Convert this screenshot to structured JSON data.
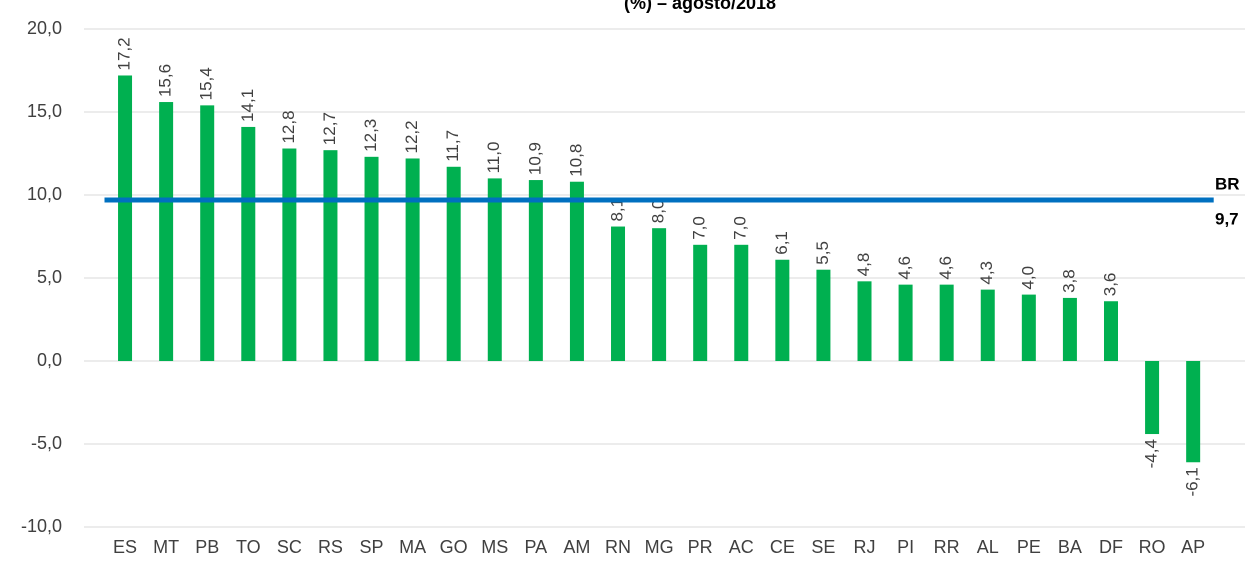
{
  "chart_data": {
    "type": "bar",
    "title": "(%)  – agosto/2018",
    "categories": [
      "ES",
      "MT",
      "PB",
      "TO",
      "SC",
      "RS",
      "SP",
      "MA",
      "GO",
      "MS",
      "PA",
      "AM",
      "RN",
      "MG",
      "PR",
      "AC",
      "CE",
      "SE",
      "RJ",
      "PI",
      "RR",
      "AL",
      "PE",
      "BA",
      "DF",
      "RO",
      "AP"
    ],
    "values": [
      17.2,
      15.6,
      15.4,
      14.1,
      12.8,
      12.7,
      12.3,
      12.2,
      11.7,
      11.0,
      10.9,
      10.8,
      8.1,
      8.0,
      7.0,
      7.0,
      6.1,
      5.5,
      4.8,
      4.6,
      4.6,
      4.3,
      4.0,
      3.8,
      3.6,
      -4.4,
      -6.1
    ],
    "value_labels": [
      "17,2",
      "15,6",
      "15,4",
      "14,1",
      "12,8",
      "12,7",
      "12,3",
      "12,2",
      "11,7",
      "11,0",
      "10,9",
      "10,8",
      "8,1",
      "8,0",
      "7,0",
      "7,0",
      "6,1",
      "5,5",
      "4,8",
      "4,6",
      "4,6",
      "4,3",
      "4,0",
      "3,8",
      "3,6",
      "-4,4",
      "-6,1"
    ],
    "color": "#00b050",
    "ylim": [
      -10,
      20
    ],
    "yticks": [
      {
        "value": -10,
        "label": "-10,0"
      },
      {
        "value": -5,
        "label": "-5,0"
      },
      {
        "value": 0,
        "label": "0,0"
      },
      {
        "value": 5,
        "label": "5,0"
      },
      {
        "value": 10,
        "label": "10,0"
      },
      {
        "value": 15,
        "label": "15,0"
      },
      {
        "value": 20,
        "label": "20,0"
      }
    ],
    "grid": true,
    "reference": {
      "label": "BR",
      "value": 9.7,
      "value_label": "9,7",
      "color": "#0070c0"
    }
  }
}
